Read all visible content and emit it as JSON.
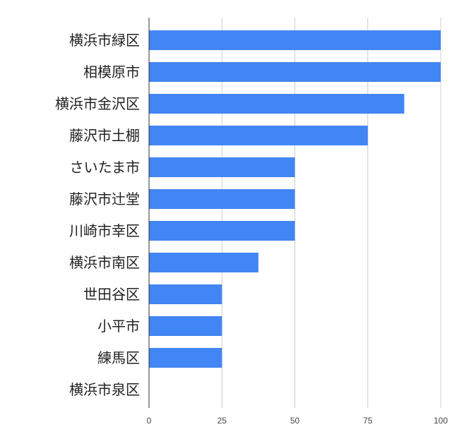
{
  "chart_data": {
    "type": "bar",
    "orientation": "horizontal",
    "categories": [
      "横浜市緑区",
      "相模原市",
      "横浜市金沢区",
      "藤沢市土棚",
      "さいたま市",
      "藤沢市辻堂",
      "川崎市幸区",
      "横浜市南区",
      "世田谷区",
      "小平市",
      "練馬区",
      "横浜市泉区"
    ],
    "values": [
      100,
      100,
      87.5,
      75,
      50,
      50,
      50,
      37.5,
      25,
      25,
      25,
      0
    ],
    "xlim": [
      0,
      100
    ],
    "xticks": [
      "0",
      "25",
      "50",
      "75",
      "100"
    ],
    "grid": true,
    "colors": {
      "bar": "#4285f4",
      "grid": "#cccccc",
      "axis": "#333333"
    }
  }
}
